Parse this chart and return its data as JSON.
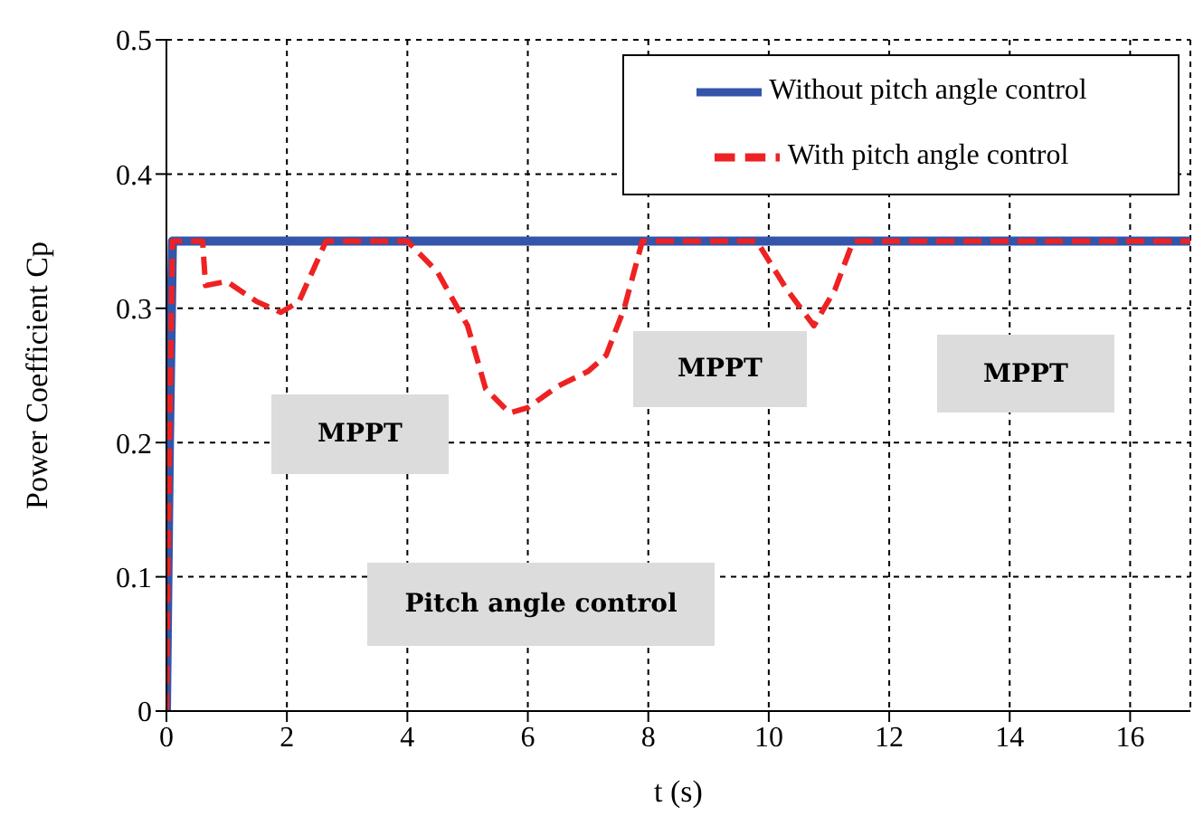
{
  "chart_data": {
    "type": "line",
    "xlabel": "t (s)",
    "ylabel": "Power Coefficient Cp",
    "xlim": [
      0,
      17
    ],
    "xticks": [
      0,
      2,
      4,
      6,
      8,
      10,
      12,
      14,
      16
    ],
    "ylim": [
      0,
      0.5
    ],
    "yticks": [
      0,
      0.1,
      0.2,
      0.3,
      0.4,
      0.5
    ],
    "grid": true,
    "legend": "top right",
    "annotations": [
      "MPPT",
      "Pitch angle control",
      "MPPT",
      "MPPT"
    ],
    "series": [
      {
        "name": "Without pitch angle control",
        "color": "#3355aa",
        "line_style": "solid",
        "x": [
          0,
          0.05,
          0.1,
          17
        ],
        "values": [
          0,
          0.2,
          0.35,
          0.35
        ]
      },
      {
        "name": "With pitch angle control",
        "color": "#ee2222",
        "line_style": "dashed",
        "x": [
          0,
          0.05,
          0.1,
          0.6,
          0.65,
          1,
          1.5,
          1.9,
          2.2,
          2.65,
          4,
          4.5,
          5,
          5.3,
          5.7,
          6,
          6.5,
          7,
          7.3,
          7.6,
          7.9,
          9.8,
          10.3,
          10.75,
          11.1,
          11.4,
          17
        ],
        "values": [
          0,
          0.2,
          0.35,
          0.35,
          0.317,
          0.32,
          0.305,
          0.297,
          0.305,
          0.35,
          0.35,
          0.327,
          0.287,
          0.24,
          0.222,
          0.226,
          0.242,
          0.253,
          0.265,
          0.3,
          0.35,
          0.35,
          0.314,
          0.287,
          0.314,
          0.35,
          0.35
        ]
      }
    ]
  }
}
